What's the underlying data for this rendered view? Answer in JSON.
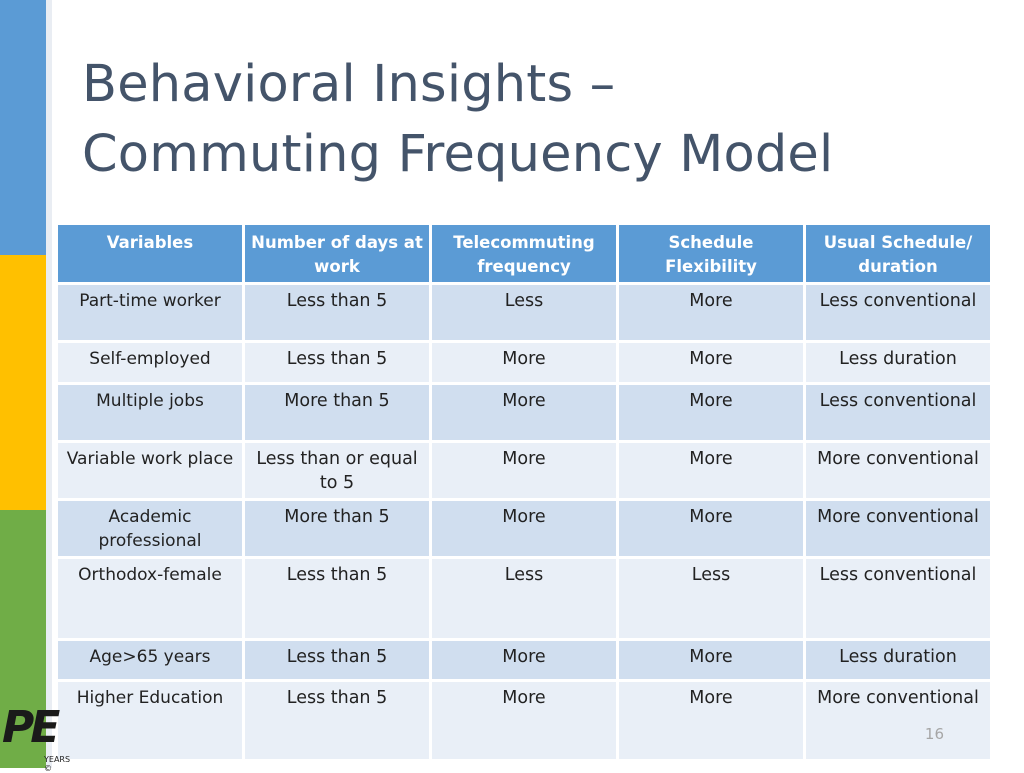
{
  "slide": {
    "title_line1": "Behavioral Insights –",
    "title_line2": "Commuting Frequency Model",
    "page_number": "16",
    "logo_text": "PE",
    "logo_small": "YEARS ©"
  },
  "table": {
    "headers": [
      "Variables",
      "Number of days at work",
      "Telecommuting frequency",
      "Schedule Flexibility",
      "Usual Schedule/ duration"
    ],
    "rows": [
      [
        "Part-time worker",
        "Less than 5",
        "Less",
        "More",
        "Less conventional"
      ],
      [
        "Self-employed",
        "Less than 5",
        "More",
        "More",
        "Less duration"
      ],
      [
        "Multiple jobs",
        "More than 5",
        "More",
        "More",
        "Less conventional"
      ],
      [
        "Variable work place",
        "Less than or equal to 5",
        "More",
        "More",
        "More conventional"
      ],
      [
        "Academic professional",
        "More than 5",
        "More",
        "More",
        "More conventional"
      ],
      [
        "Orthodox-female",
        "Less than 5",
        "Less",
        "Less",
        "Less conventional"
      ],
      [
        "Age>65 years",
        "Less than 5",
        "More",
        "More",
        "Less duration"
      ],
      [
        "Higher Education",
        "Less than 5",
        "More",
        "More",
        "More conventional"
      ]
    ]
  },
  "colors": {
    "accent_blue": "#5b9bd5",
    "accent_yellow": "#ffc000",
    "accent_green": "#70ad47",
    "row_dark": "#d0deef",
    "row_light": "#e9eff7"
  }
}
